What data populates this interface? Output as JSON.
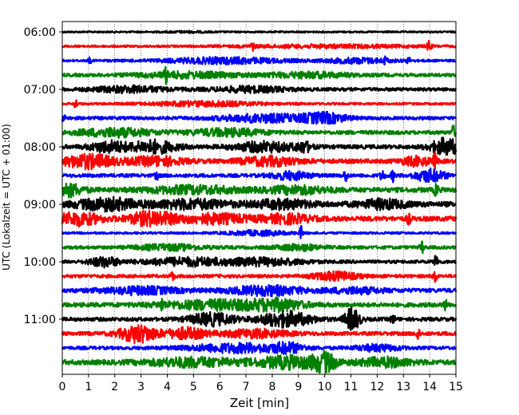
{
  "chart_data": {
    "type": "line",
    "title": "",
    "xlabel": "Zeit  [min]",
    "ylabel": "UTC (Lokalzeit = UTC + 01:00)",
    "xlim": [
      0,
      15
    ],
    "x_ticks": [
      "0",
      "1",
      "2",
      "3",
      "4",
      "5",
      "6",
      "7",
      "8",
      "9",
      "10",
      "11",
      "12",
      "13",
      "14",
      "15"
    ],
    "y_tick_labels": [
      "06:00",
      "07:00",
      "08:00",
      "09:00",
      "10:00",
      "11:00"
    ],
    "grid": "vertical dotted",
    "row_count": 24,
    "row_colors": [
      "#000000",
      "#ff0000",
      "#0000ff",
      "#008000"
    ],
    "rows": [
      {
        "time": "06:00",
        "base": 0.06,
        "events": [
          [
            4.7,
            0.05,
            0.6
          ]
        ]
      },
      {
        "time": "06:15",
        "base": 0.08,
        "events": [
          [
            7.25,
            0.28,
            0.05
          ],
          [
            10.2,
            0.1,
            2.5
          ],
          [
            13.98,
            0.45,
            0.05
          ]
        ]
      },
      {
        "time": "06:30",
        "base": 0.09,
        "events": [
          [
            1.05,
            0.25,
            0.04
          ],
          [
            6.2,
            0.22,
            1.6
          ],
          [
            11.3,
            0.18,
            0.9
          ],
          [
            12.3,
            0.2,
            0.05
          ],
          [
            13.2,
            0.22,
            0.05
          ]
        ]
      },
      {
        "time": "06:45",
        "base": 0.12,
        "events": [
          [
            3.95,
            0.45,
            0.05
          ],
          [
            4.8,
            0.2,
            1.4
          ],
          [
            9.4,
            0.18,
            1.2
          ]
        ]
      },
      {
        "time": "07:00",
        "base": 0.12,
        "events": [
          [
            2.6,
            0.22,
            1.0
          ],
          [
            7.2,
            0.2,
            1.0
          ]
        ]
      },
      {
        "time": "07:15",
        "base": 0.08,
        "events": [
          [
            0.5,
            0.45,
            0.04
          ],
          [
            5.5,
            0.18,
            1.5
          ]
        ]
      },
      {
        "time": "07:30",
        "base": 0.12,
        "events": [
          [
            0.05,
            0.3,
            0.05
          ],
          [
            7.7,
            0.28,
            1.2
          ],
          [
            10.0,
            0.35,
            0.6
          ]
        ]
      },
      {
        "time": "07:45",
        "base": 0.14,
        "events": [
          [
            2.0,
            0.3,
            1.0
          ],
          [
            6.3,
            0.25,
            1.0
          ],
          [
            14.9,
            0.5,
            0.05
          ]
        ]
      },
      {
        "time": "08:00",
        "base": 0.15,
        "events": [
          [
            1.8,
            0.4,
            0.5
          ],
          [
            3.5,
            0.45,
            0.6
          ],
          [
            7.7,
            0.35,
            0.8
          ],
          [
            9.2,
            0.35,
            0.2
          ],
          [
            14.6,
            0.6,
            0.4
          ]
        ]
      },
      {
        "time": "08:15",
        "base": 0.16,
        "events": [
          [
            1.0,
            0.5,
            0.7
          ],
          [
            3.6,
            0.32,
            0.7
          ],
          [
            7.9,
            0.3,
            0.8
          ],
          [
            13.5,
            0.3,
            0.4
          ],
          [
            14.2,
            0.5,
            0.05
          ]
        ]
      },
      {
        "time": "08:30",
        "base": 0.13,
        "events": [
          [
            3.6,
            0.28,
            0.05
          ],
          [
            8.7,
            0.28,
            0.5
          ],
          [
            10.8,
            0.5,
            0.05
          ],
          [
            12.2,
            0.4,
            0.06
          ],
          [
            12.6,
            0.4,
            0.05
          ],
          [
            14.0,
            0.45,
            0.4
          ]
        ]
      },
      {
        "time": "08:45",
        "base": 0.18,
        "events": [
          [
            0.2,
            0.45,
            0.4
          ],
          [
            5.0,
            0.25,
            1.2
          ],
          [
            9.0,
            0.25,
            0.8
          ],
          [
            14.25,
            0.55,
            0.05
          ]
        ]
      },
      {
        "time": "09:00",
        "base": 0.2,
        "events": [
          [
            1.7,
            0.4,
            0.8
          ],
          [
            4.9,
            0.3,
            1.0
          ],
          [
            8.4,
            0.28,
            0.8
          ],
          [
            12.2,
            0.3,
            0.6
          ]
        ]
      },
      {
        "time": "09:15",
        "base": 0.18,
        "events": [
          [
            0.6,
            0.45,
            0.6
          ],
          [
            3.4,
            0.5,
            0.6
          ],
          [
            5.8,
            0.32,
            1.0
          ],
          [
            8.6,
            0.3,
            0.6
          ],
          [
            13.2,
            0.35,
            0.05
          ]
        ]
      },
      {
        "time": "09:30",
        "base": 0.08,
        "events": [
          [
            7.5,
            0.18,
            0.8
          ],
          [
            9.1,
            0.45,
            0.05
          ]
        ]
      },
      {
        "time": "09:45",
        "base": 0.12,
        "events": [
          [
            4.1,
            0.2,
            0.9
          ],
          [
            9.0,
            0.2,
            0.6
          ],
          [
            13.7,
            0.45,
            0.05
          ]
        ]
      },
      {
        "time": "10:00",
        "base": 0.12,
        "events": [
          [
            1.6,
            0.35,
            0.4
          ],
          [
            4.8,
            0.28,
            1.2
          ],
          [
            7.8,
            0.25,
            1.0
          ],
          [
            14.25,
            0.55,
            0.05
          ]
        ]
      },
      {
        "time": "10:15",
        "base": 0.12,
        "events": [
          [
            4.2,
            0.35,
            0.05
          ],
          [
            10.4,
            0.3,
            0.6
          ],
          [
            14.2,
            0.5,
            0.05
          ]
        ]
      },
      {
        "time": "10:30",
        "base": 0.15,
        "events": [
          [
            3.0,
            0.25,
            1.0
          ],
          [
            7.8,
            0.32,
            1.0
          ],
          [
            11.2,
            0.2,
            0.7
          ]
        ]
      },
      {
        "time": "10:45",
        "base": 0.16,
        "events": [
          [
            3.8,
            0.4,
            0.05
          ],
          [
            5.9,
            0.32,
            1.5
          ],
          [
            8.2,
            0.35,
            0.7
          ],
          [
            14.6,
            0.4,
            0.05
          ]
        ]
      },
      {
        "time": "11:00",
        "base": 0.14,
        "events": [
          [
            5.7,
            0.45,
            0.6
          ],
          [
            8.5,
            0.55,
            0.7
          ],
          [
            11.05,
            0.85,
            0.2
          ],
          [
            12.6,
            0.3,
            0.06
          ]
        ]
      },
      {
        "time": "11:15",
        "base": 0.14,
        "events": [
          [
            2.9,
            0.65,
            0.5
          ],
          [
            4.7,
            0.4,
            0.5
          ],
          [
            7.3,
            0.28,
            0.9
          ],
          [
            13.55,
            0.5,
            0.05
          ]
        ]
      },
      {
        "time": "11:30",
        "base": 0.12,
        "events": [
          [
            6.7,
            0.32,
            1.3
          ],
          [
            8.6,
            0.3,
            0.4
          ],
          [
            12.0,
            0.22,
            0.6
          ]
        ]
      },
      {
        "time": "11:45",
        "base": 0.18,
        "events": [
          [
            5.0,
            0.3,
            1.2
          ],
          [
            8.7,
            0.42,
            0.9
          ],
          [
            10.0,
            0.6,
            0.3
          ],
          [
            12.3,
            0.3,
            0.7
          ]
        ]
      }
    ]
  }
}
